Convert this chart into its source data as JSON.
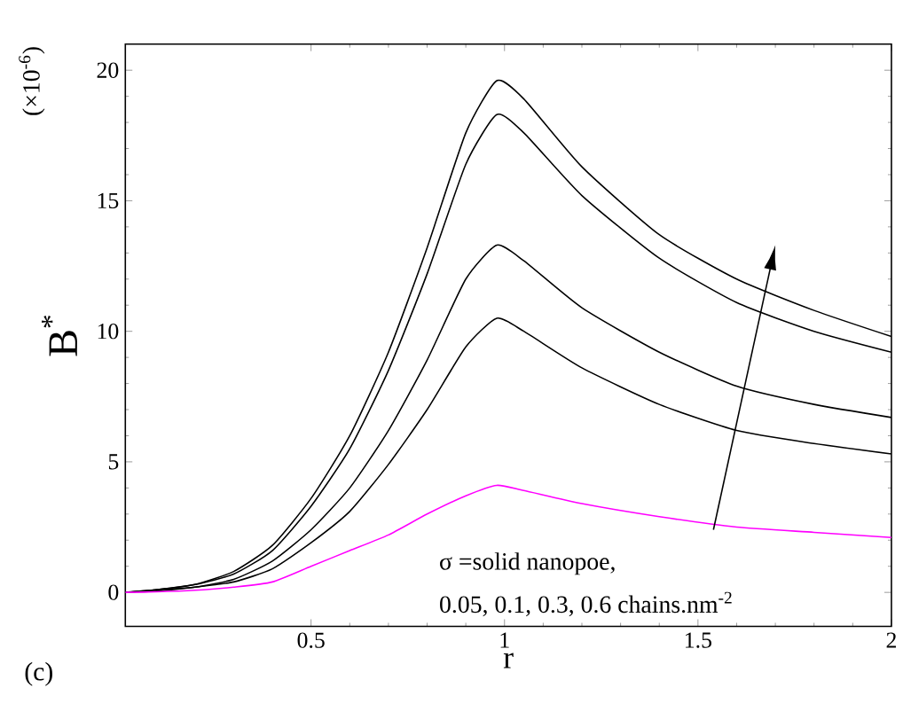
{
  "chart_data": {
    "type": "line",
    "xlabel": "r",
    "ylabel": "B$^{*}$",
    "xlim": [
      0.02,
      2
    ],
    "ylim": [
      -1.3,
      21
    ],
    "xticks": [
      0.5,
      1,
      1.5,
      2
    ],
    "yticks": [
      0,
      5,
      10,
      15,
      20
    ],
    "x": [
      0.02,
      0.1,
      0.2,
      0.3,
      0.4,
      0.5,
      0.6,
      0.7,
      0.8,
      0.9,
      0.98,
      1.05,
      1.2,
      1.4,
      1.6,
      1.8,
      2.0
    ],
    "series": [
      {
        "color": "#000000",
        "values": [
          0,
          0.1,
          0.3,
          0.8,
          1.8,
          3.6,
          6.0,
          9.2,
          13.2,
          17.6,
          19.6,
          18.9,
          16.3,
          13.7,
          12.0,
          10.8,
          9.8
        ]
      },
      {
        "color": "#000000",
        "values": [
          0,
          0.1,
          0.3,
          0.7,
          1.6,
          3.3,
          5.5,
          8.5,
          12.2,
          16.4,
          18.3,
          17.6,
          15.2,
          12.8,
          11.1,
          10.0,
          9.2
        ]
      },
      {
        "color": "#000000",
        "values": [
          0,
          0.1,
          0.2,
          0.5,
          1.2,
          2.4,
          4.0,
          6.2,
          8.9,
          12.0,
          13.3,
          12.7,
          10.9,
          9.2,
          7.9,
          7.2,
          6.7
        ]
      },
      {
        "color": "#000000",
        "values": [
          0,
          0.05,
          0.2,
          0.4,
          0.9,
          1.9,
          3.1,
          4.9,
          7.0,
          9.4,
          10.5,
          10.0,
          8.6,
          7.2,
          6.2,
          5.7,
          5.3
        ]
      },
      {
        "color": "#ff00ff",
        "values": [
          0,
          0.02,
          0.08,
          0.2,
          0.4,
          1.0,
          1.6,
          2.2,
          3.0,
          3.7,
          4.1,
          3.9,
          3.4,
          2.9,
          2.5,
          2.3,
          2.1
        ]
      }
    ],
    "annotations": [
      "(×10$^{-6}$)",
      "σ =solid nanopoe,",
      "0.05, 0.1, 0.3, 0.6 chains.nm$^{-2}$",
      "(c)"
    ]
  }
}
